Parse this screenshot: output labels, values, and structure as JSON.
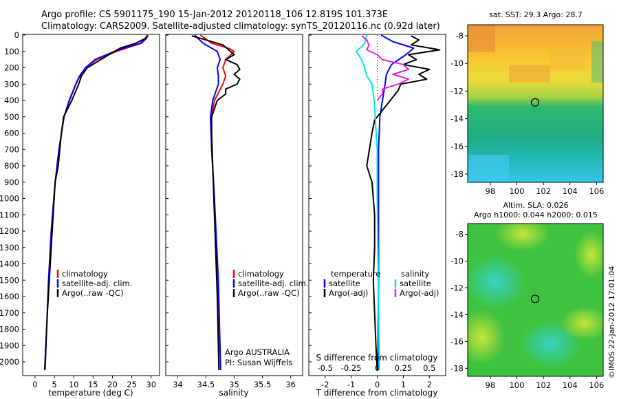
{
  "header": {
    "line1": "Argo profile: CS 5901175_190 15-Jan-2012 20120118_106 12.819S 101.373E",
    "line2": "Climatology: CARS2009. Satellite-adjusted climatology: synTS_20120116.nc (0.92d later)"
  },
  "colors": {
    "clim": "#ff0000",
    "sat": "#0000ff",
    "argo": "#000000",
    "sat_s": "#00e5e5",
    "argo_s": "#e020e0"
  },
  "depth_ticks": [
    0,
    100,
    200,
    300,
    400,
    500,
    600,
    700,
    800,
    900,
    1000,
    1100,
    1200,
    1300,
    1400,
    1500,
    1600,
    1700,
    1800,
    1900,
    2000
  ],
  "chart_data": [
    {
      "type": "line",
      "name": "temperature-profile",
      "xlabel": "temperature (deg C)",
      "xlim": [
        -3,
        32
      ],
      "ylim": [
        0,
        2080
      ],
      "xticks": [
        0,
        5,
        10,
        15,
        20,
        25,
        30
      ],
      "legend": [
        "climatology",
        "satellite-adj. clim.",
        "Argo(..raw -QC)"
      ],
      "series": [
        {
          "name": "climatology",
          "color": "#ff0000",
          "depth": [
            0,
            20,
            50,
            80,
            100,
            150,
            200,
            250,
            300,
            400,
            500,
            700,
            900,
            1200,
            1500,
            1800,
            2050
          ],
          "values": [
            29.2,
            28.8,
            27.5,
            23.5,
            21,
            16,
            13,
            11.5,
            10.5,
            8.8,
            7.5,
            6.2,
            5.2,
            4.2,
            3.5,
            3.0,
            2.6
          ]
        },
        {
          "name": "satellite-adj. clim.",
          "color": "#0000ff",
          "depth": [
            0,
            20,
            50,
            80,
            100,
            150,
            200,
            250,
            300,
            400,
            500,
            700,
            900,
            1200,
            1500,
            1800,
            2050
          ],
          "values": [
            29.0,
            28.7,
            27.2,
            23,
            20.5,
            15.5,
            13,
            11.6,
            10.6,
            8.9,
            7.5,
            6.2,
            5.2,
            4.2,
            3.5,
            3.0,
            2.6
          ]
        },
        {
          "name": "Argo",
          "color": "#000000",
          "depth": [
            5,
            20,
            50,
            80,
            100,
            150,
            200,
            250,
            300,
            400,
            500,
            600,
            800,
            900,
            1100,
            1300,
            1500,
            1700,
            1900,
            2050
          ],
          "values": [
            29.0,
            28.5,
            26,
            22,
            20.5,
            17,
            13.5,
            12,
            11.3,
            9.5,
            7.4,
            6.8,
            6.0,
            5.2,
            4.7,
            4.2,
            3.7,
            3.2,
            2.8,
            2.5
          ]
        }
      ]
    },
    {
      "type": "line",
      "name": "salinity-profile",
      "xlabel": "salinity",
      "xlim": [
        33.8,
        36.2
      ],
      "ylim": [
        0,
        2080
      ],
      "xticks": [
        34,
        34.5,
        35,
        35.5,
        36
      ],
      "legend": [
        "climatology",
        "satellite-adj. clim.",
        "Argo(..raw -QC)"
      ],
      "annotation": [
        "Argo AUSTRALIA",
        "PI: Susan Wijffels"
      ],
      "series": [
        {
          "name": "climatology",
          "color": "#ff0000",
          "depth": [
            0,
            50,
            80,
            100,
            150,
            200,
            250,
            300,
            400,
            500,
            700,
            1000,
            1500,
            2050
          ],
          "values": [
            34.4,
            34.6,
            34.9,
            35.0,
            34.85,
            34.8,
            34.85,
            34.8,
            34.65,
            34.6,
            34.6,
            34.65,
            34.7,
            34.73
          ]
        },
        {
          "name": "satellite-adj. clim.",
          "color": "#0000ff",
          "depth": [
            0,
            50,
            80,
            100,
            150,
            200,
            250,
            300,
            400,
            500,
            700,
            1000,
            1500,
            2050
          ],
          "values": [
            34.3,
            34.45,
            34.6,
            34.7,
            34.75,
            34.7,
            34.72,
            34.72,
            34.62,
            34.58,
            34.6,
            34.65,
            34.72,
            34.76
          ]
        },
        {
          "name": "Argo",
          "color": "#000000",
          "depth": [
            5,
            30,
            60,
            90,
            120,
            150,
            180,
            210,
            240,
            270,
            300,
            330,
            360,
            400,
            450,
            500,
            600,
            800,
            1200,
            1600,
            2050
          ],
          "values": [
            34.25,
            34.5,
            34.8,
            34.9,
            35.0,
            34.85,
            35.05,
            35.1,
            35.0,
            35.1,
            35.05,
            34.85,
            34.85,
            34.7,
            34.65,
            34.6,
            34.6,
            34.62,
            34.66,
            34.7,
            34.73
          ]
        }
      ]
    },
    {
      "type": "line",
      "name": "difference-profile",
      "xlabel": "T difference from climatology",
      "top_label": "S difference from climatology",
      "xlim": [
        -2.6,
        2.6
      ],
      "ylim": [
        0,
        2080
      ],
      "xticks": [
        -2,
        -1,
        0,
        1,
        2
      ],
      "top_ticks": [
        -0.5,
        -0.25,
        0,
        0.25,
        0.5
      ],
      "legend_left_title": "temperature",
      "legend_right_title": "salinity",
      "legend_left": [
        "satellite",
        "Argo(-adj)"
      ],
      "legend_right": [
        "satellite",
        "Argo(-adj)"
      ],
      "series": [
        {
          "name": "T satellite",
          "color": "#0000ff",
          "depth": [
            0,
            40,
            80,
            120,
            180,
            240,
            300,
            400,
            500,
            700,
            1000,
            1500,
            2050
          ],
          "values": [
            0.15,
            0.6,
            1.4,
            1.1,
            0.55,
            0.35,
            0.3,
            0.2,
            0.1,
            0.05,
            0.05,
            0.05,
            0.02
          ]
        },
        {
          "name": "T Argo(-adj)",
          "color": "#000000",
          "depth": [
            5,
            30,
            60,
            90,
            120,
            150,
            180,
            210,
            240,
            270,
            300,
            340,
            380,
            420,
            460,
            520,
            600,
            700,
            800,
            900,
            1100,
            1300,
            1500,
            1700,
            1900,
            2050
          ],
          "values": [
            1.3,
            1.6,
            1.3,
            2.4,
            1.2,
            1.5,
            1.0,
            2.0,
            1.6,
            1.9,
            0.9,
            0.8,
            0.6,
            0.4,
            0.2,
            -0.1,
            -0.2,
            -0.3,
            -0.4,
            -0.2,
            -0.1,
            -0.1,
            -0.15,
            -0.1,
            -0.05,
            0.0
          ]
        },
        {
          "name": "S satellite",
          "color": "#00e5e5",
          "depth": [
            0,
            50,
            100,
            150,
            200,
            250,
            300,
            400,
            500,
            700,
            1000,
            1500,
            2050
          ],
          "values": [
            -0.1,
            -0.12,
            -0.2,
            -0.15,
            -0.12,
            -0.1,
            -0.05,
            -0.03,
            -0.02,
            0.0,
            0.0,
            0.01,
            0.02
          ]
        },
        {
          "name": "S Argo(-adj)",
          "color": "#e020e0",
          "depth": [
            5,
            30,
            60,
            90,
            120,
            150,
            180,
            210,
            240,
            270,
            300,
            330,
            360,
            400
          ],
          "values": [
            -0.15,
            -0.1,
            -0.08,
            -0.1,
            0.0,
            0.05,
            0.25,
            0.3,
            0.15,
            0.3,
            0.2,
            0.05,
            0.05,
            0.0
          ]
        }
      ]
    },
    {
      "type": "heatmap",
      "name": "sst-map",
      "title": "sat. SST: 29.3 Argo: 28.7",
      "xlim": [
        96.3,
        106.5
      ],
      "ylim": [
        -18.6,
        -7.2
      ],
      "xticks": [
        98,
        100,
        102,
        104,
        106
      ],
      "yticks": [
        -8,
        -10,
        -12,
        -14,
        -16,
        -18
      ],
      "argo_position": [
        101.373,
        -12.819
      ]
    },
    {
      "type": "heatmap",
      "name": "sla-map",
      "title_line1": "Altim. SLA: 0.026",
      "title_line2": "Argo h1000: 0.044 h2000: 0.015",
      "xlim": [
        96.3,
        106.5
      ],
      "ylim": [
        -18.6,
        -7.2
      ],
      "xticks": [
        98,
        100,
        102,
        104,
        106
      ],
      "yticks": [
        -8,
        -10,
        -12,
        -14,
        -16,
        -18
      ],
      "argo_position": [
        101.373,
        -12.819
      ]
    }
  ],
  "credit": "©IMOS 22-Jan-2012 17:01:04"
}
